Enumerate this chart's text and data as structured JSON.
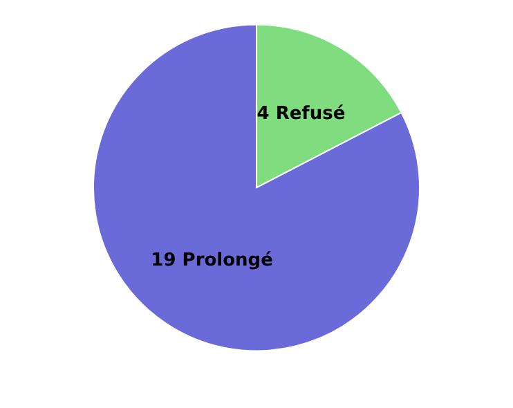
{
  "chart_data": {
    "type": "pie",
    "categories": [
      "Refusé",
      "Prolongé"
    ],
    "values": [
      4,
      19
    ],
    "colors": [
      "#7fdc7f",
      "#6a6ad8"
    ],
    "data_labels": true
  }
}
